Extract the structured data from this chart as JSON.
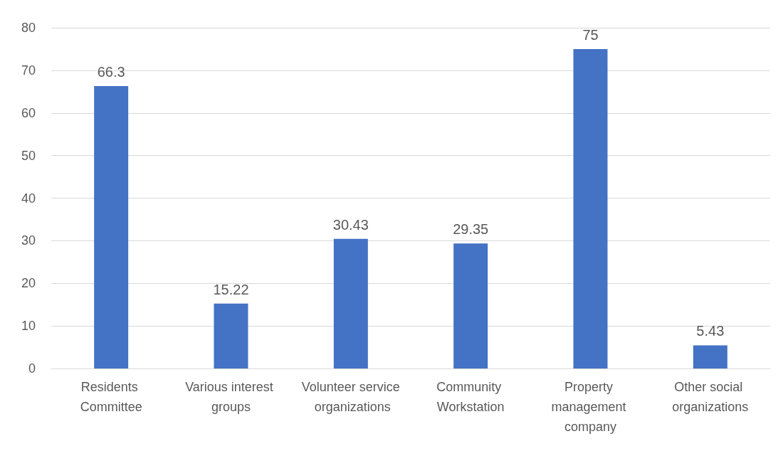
{
  "chart_data": {
    "type": "bar",
    "categories": [
      "Residents Committee",
      "Various interest groups",
      "Volunteer service organizations",
      "Community Workstation",
      "Property management company",
      "Other social organizations"
    ],
    "values": [
      66.3,
      15.22,
      30.43,
      29.35,
      75,
      5.43
    ],
    "color": "#4472c4",
    "ylim": [
      0,
      80
    ],
    "yticks": [
      0,
      10,
      20,
      30,
      40,
      50,
      60,
      70,
      80
    ],
    "grid": "y",
    "data_labels": true
  }
}
